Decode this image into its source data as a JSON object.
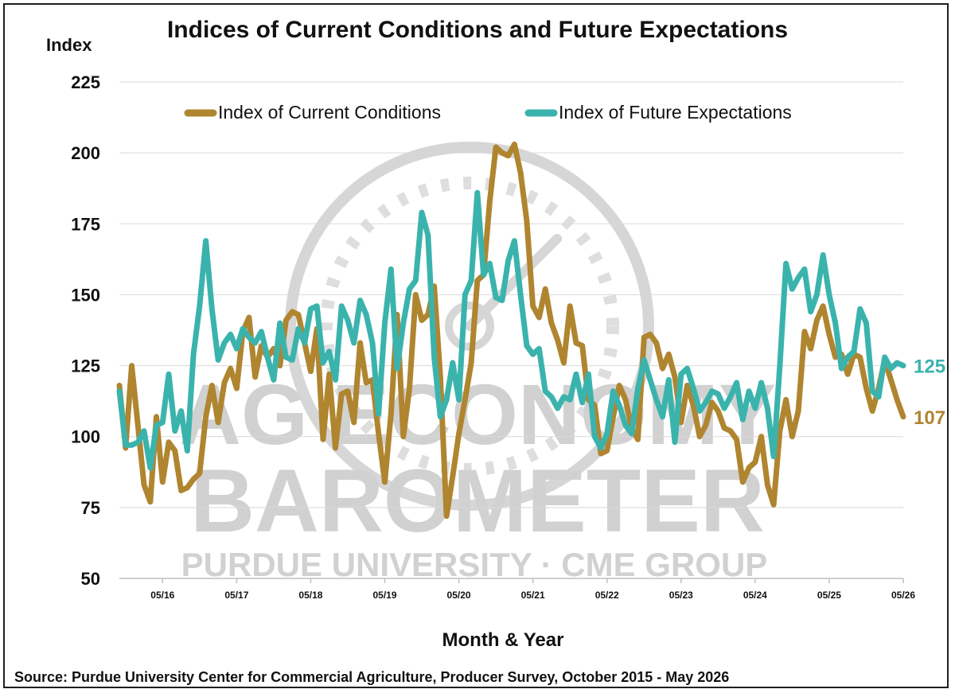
{
  "chart_data": {
    "type": "line",
    "title": "Indices of Current Conditions and Future Expectations",
    "ylabel": "Index",
    "xlabel": "Month & Year",
    "ylim": [
      50,
      225
    ],
    "yticks": [
      225,
      200,
      175,
      150,
      125,
      100,
      75,
      50
    ],
    "x_start": "2015-10",
    "x_end": "2026-05",
    "xticks": [
      {
        "label": "05/16",
        "date": "2016-05"
      },
      {
        "label": "05/17",
        "date": "2017-05"
      },
      {
        "label": "05/18",
        "date": "2018-05"
      },
      {
        "label": "05/19",
        "date": "2019-05"
      },
      {
        "label": "05/20",
        "date": "2020-05"
      },
      {
        "label": "05/21",
        "date": "2021-05"
      },
      {
        "label": "05/22",
        "date": "2022-05"
      },
      {
        "label": "05/23",
        "date": "2023-05"
      },
      {
        "label": "05/24",
        "date": "2024-05"
      },
      {
        "label": "05/25",
        "date": "2025-05"
      },
      {
        "label": "05/26",
        "date": "2026-05"
      }
    ],
    "grid": "horizontal",
    "legend": "top",
    "series": [
      {
        "name": "Index of Current Conditions",
        "color": "#b08530",
        "end_label": "107",
        "points": [
          [
            "2015-10",
            118
          ],
          [
            "2015-11",
            96
          ],
          [
            "2015-12",
            125
          ],
          [
            "2016-01",
            104
          ],
          [
            "2016-02",
            83
          ],
          [
            "2016-03",
            77
          ],
          [
            "2016-04",
            107
          ],
          [
            "2016-05",
            84
          ],
          [
            "2016-06",
            98
          ],
          [
            "2016-07",
            95
          ],
          [
            "2016-08",
            81
          ],
          [
            "2016-09",
            82
          ],
          [
            "2016-10",
            85
          ],
          [
            "2016-11",
            87
          ],
          [
            "2016-12",
            107
          ],
          [
            "2017-01",
            118
          ],
          [
            "2017-02",
            105
          ],
          [
            "2017-03",
            119
          ],
          [
            "2017-04",
            124
          ],
          [
            "2017-05",
            117
          ],
          [
            "2017-06",
            137
          ],
          [
            "2017-07",
            142
          ],
          [
            "2017-08",
            121
          ],
          [
            "2017-09",
            132
          ],
          [
            "2017-10",
            128
          ],
          [
            "2017-11",
            131
          ],
          [
            "2017-12",
            125
          ],
          [
            "2018-01",
            141
          ],
          [
            "2018-02",
            144
          ],
          [
            "2018-03",
            143
          ],
          [
            "2018-04",
            133
          ],
          [
            "2018-05",
            123
          ],
          [
            "2018-06",
            138
          ],
          [
            "2018-07",
            99
          ],
          [
            "2018-08",
            122
          ],
          [
            "2018-09",
            96
          ],
          [
            "2018-10",
            115
          ],
          [
            "2018-11",
            116
          ],
          [
            "2018-12",
            105
          ],
          [
            "2019-01",
            133
          ],
          [
            "2019-02",
            119
          ],
          [
            "2019-03",
            120
          ],
          [
            "2019-04",
            101
          ],
          [
            "2019-05",
            84
          ],
          [
            "2019-06",
            108
          ],
          [
            "2019-07",
            143
          ],
          [
            "2019-08",
            100
          ],
          [
            "2019-09",
            117
          ],
          [
            "2019-10",
            150
          ],
          [
            "2019-11",
            141
          ],
          [
            "2019-12",
            143
          ],
          [
            "2020-01",
            153
          ],
          [
            "2020-02",
            121
          ],
          [
            "2020-03",
            72
          ],
          [
            "2020-04",
            86
          ],
          [
            "2020-05",
            101
          ],
          [
            "2020-06",
            113
          ],
          [
            "2020-07",
            126
          ],
          [
            "2020-08",
            155
          ],
          [
            "2020-09",
            157
          ],
          [
            "2020-10",
            183
          ],
          [
            "2020-11",
            202
          ],
          [
            "2020-12",
            200
          ],
          [
            "2021-01",
            199
          ],
          [
            "2021-02",
            203
          ],
          [
            "2021-03",
            193
          ],
          [
            "2021-04",
            176
          ],
          [
            "2021-05",
            146
          ],
          [
            "2021-06",
            142
          ],
          [
            "2021-07",
            152
          ],
          [
            "2021-08",
            140
          ],
          [
            "2021-09",
            134
          ],
          [
            "2021-10",
            126
          ],
          [
            "2021-11",
            146
          ],
          [
            "2021-12",
            133
          ],
          [
            "2022-01",
            132
          ],
          [
            "2022-02",
            113
          ],
          [
            "2022-03",
            111
          ],
          [
            "2022-04",
            94
          ],
          [
            "2022-05",
            95
          ],
          [
            "2022-06",
            107
          ],
          [
            "2022-07",
            118
          ],
          [
            "2022-08",
            113
          ],
          [
            "2022-09",
            103
          ],
          [
            "2022-10",
            99
          ],
          [
            "2022-11",
            135
          ],
          [
            "2022-12",
            136
          ],
          [
            "2023-01",
            133
          ],
          [
            "2023-02",
            124
          ],
          [
            "2023-03",
            129
          ],
          [
            "2023-04",
            121
          ],
          [
            "2023-05",
            105
          ],
          [
            "2023-06",
            118
          ],
          [
            "2023-07",
            111
          ],
          [
            "2023-08",
            100
          ],
          [
            "2023-09",
            104
          ],
          [
            "2023-10",
            112
          ],
          [
            "2023-11",
            109
          ],
          [
            "2023-12",
            103
          ],
          [
            "2024-01",
            102
          ],
          [
            "2024-02",
            99
          ],
          [
            "2024-03",
            84
          ],
          [
            "2024-04",
            89
          ],
          [
            "2024-05",
            91
          ],
          [
            "2024-06",
            100
          ],
          [
            "2024-07",
            83
          ],
          [
            "2024-08",
            76
          ],
          [
            "2024-09",
            102
          ],
          [
            "2024-10",
            113
          ],
          [
            "2024-11",
            100
          ],
          [
            "2024-12",
            109
          ],
          [
            "2025-01",
            137
          ],
          [
            "2025-02",
            131
          ],
          [
            "2025-03",
            141
          ],
          [
            "2025-04",
            146
          ],
          [
            "2025-05",
            136
          ],
          [
            "2025-06",
            128
          ],
          [
            "2025-07",
            129
          ],
          [
            "2025-08",
            122
          ],
          [
            "2025-09",
            129
          ],
          [
            "2025-10",
            128
          ],
          [
            "2025-11",
            117
          ],
          [
            "2025-12",
            109
          ],
          [
            "2026-01",
            117
          ],
          [
            "2026-02",
            127
          ],
          [
            "2026-03",
            120
          ],
          [
            "2026-04",
            113
          ],
          [
            "2026-05",
            107
          ]
        ]
      },
      {
        "name": "Index of Future Expectations",
        "color": "#3bb3ad",
        "end_label": "125",
        "points": [
          [
            "2015-10",
            116
          ],
          [
            "2015-11",
            97
          ],
          [
            "2015-12",
            97
          ],
          [
            "2016-01",
            98
          ],
          [
            "2016-02",
            102
          ],
          [
            "2016-03",
            89
          ],
          [
            "2016-04",
            104
          ],
          [
            "2016-05",
            105
          ],
          [
            "2016-06",
            122
          ],
          [
            "2016-07",
            102
          ],
          [
            "2016-08",
            109
          ],
          [
            "2016-09",
            95
          ],
          [
            "2016-10",
            129
          ],
          [
            "2016-11",
            146
          ],
          [
            "2016-12",
            169
          ],
          [
            "2017-01",
            145
          ],
          [
            "2017-02",
            127
          ],
          [
            "2017-03",
            133
          ],
          [
            "2017-04",
            136
          ],
          [
            "2017-05",
            131
          ],
          [
            "2017-06",
            138
          ],
          [
            "2017-07",
            135
          ],
          [
            "2017-08",
            133
          ],
          [
            "2017-09",
            137
          ],
          [
            "2017-10",
            128
          ],
          [
            "2017-11",
            120
          ],
          [
            "2017-12",
            140
          ],
          [
            "2018-01",
            128
          ],
          [
            "2018-02",
            127
          ],
          [
            "2018-03",
            138
          ],
          [
            "2018-04",
            133
          ],
          [
            "2018-05",
            145
          ],
          [
            "2018-06",
            146
          ],
          [
            "2018-07",
            126
          ],
          [
            "2018-08",
            130
          ],
          [
            "2018-09",
            120
          ],
          [
            "2018-10",
            146
          ],
          [
            "2018-11",
            141
          ],
          [
            "2018-12",
            133
          ],
          [
            "2019-01",
            148
          ],
          [
            "2019-02",
            143
          ],
          [
            "2019-03",
            133
          ],
          [
            "2019-04",
            108
          ],
          [
            "2019-05",
            140
          ],
          [
            "2019-06",
            159
          ],
          [
            "2019-07",
            124
          ],
          [
            "2019-08",
            140
          ],
          [
            "2019-09",
            152
          ],
          [
            "2019-10",
            155
          ],
          [
            "2019-11",
            179
          ],
          [
            "2019-12",
            171
          ],
          [
            "2020-01",
            128
          ],
          [
            "2020-02",
            107
          ],
          [
            "2020-03",
            113
          ],
          [
            "2020-04",
            126
          ],
          [
            "2020-05",
            113
          ],
          [
            "2020-06",
            150
          ],
          [
            "2020-07",
            155
          ],
          [
            "2020-08",
            186
          ],
          [
            "2020-09",
            157
          ],
          [
            "2020-10",
            161
          ],
          [
            "2020-11",
            149
          ],
          [
            "2020-12",
            148
          ],
          [
            "2021-01",
            162
          ],
          [
            "2021-02",
            169
          ],
          [
            "2021-03",
            150
          ],
          [
            "2021-04",
            132
          ],
          [
            "2021-05",
            129
          ],
          [
            "2021-06",
            131
          ],
          [
            "2021-07",
            116
          ],
          [
            "2021-08",
            114
          ],
          [
            "2021-09",
            110
          ],
          [
            "2021-10",
            114
          ],
          [
            "2021-11",
            113
          ],
          [
            "2021-12",
            122
          ],
          [
            "2022-01",
            112
          ],
          [
            "2022-02",
            122
          ],
          [
            "2022-03",
            100
          ],
          [
            "2022-04",
            96
          ],
          [
            "2022-05",
            101
          ],
          [
            "2022-06",
            116
          ],
          [
            "2022-07",
            111
          ],
          [
            "2022-08",
            104
          ],
          [
            "2022-09",
            101
          ],
          [
            "2022-10",
            117
          ],
          [
            "2022-11",
            127
          ],
          [
            "2022-12",
            120
          ],
          [
            "2023-01",
            113
          ],
          [
            "2023-02",
            107
          ],
          [
            "2023-03",
            120
          ],
          [
            "2023-04",
            98
          ],
          [
            "2023-05",
            122
          ],
          [
            "2023-06",
            124
          ],
          [
            "2023-07",
            117
          ],
          [
            "2023-08",
            109
          ],
          [
            "2023-09",
            112
          ],
          [
            "2023-10",
            116
          ],
          [
            "2023-11",
            115
          ],
          [
            "2023-12",
            110
          ],
          [
            "2024-01",
            114
          ],
          [
            "2024-02",
            119
          ],
          [
            "2024-03",
            106
          ],
          [
            "2024-04",
            116
          ],
          [
            "2024-05",
            110
          ],
          [
            "2024-06",
            119
          ],
          [
            "2024-07",
            110
          ],
          [
            "2024-08",
            93
          ],
          [
            "2024-09",
            125
          ],
          [
            "2024-10",
            161
          ],
          [
            "2024-11",
            152
          ],
          [
            "2024-12",
            156
          ],
          [
            "2025-01",
            159
          ],
          [
            "2025-02",
            144
          ],
          [
            "2025-03",
            150
          ],
          [
            "2025-04",
            164
          ],
          [
            "2025-05",
            150
          ],
          [
            "2025-06",
            140
          ],
          [
            "2025-07",
            124
          ],
          [
            "2025-08",
            128
          ],
          [
            "2025-09",
            130
          ],
          [
            "2025-10",
            145
          ],
          [
            "2025-11",
            140
          ],
          [
            "2025-12",
            116
          ],
          [
            "2026-01",
            114
          ],
          [
            "2026-02",
            128
          ],
          [
            "2026-03",
            124
          ],
          [
            "2026-04",
            126
          ],
          [
            "2026-05",
            125
          ]
        ]
      }
    ]
  },
  "watermark": {
    "line1": "AG ECONOMY",
    "line2": "BAROMETER",
    "line3": "PURDUE UNIVERSITY · CME GROUP",
    "icon": "barometer-gauge-icon"
  },
  "source_note": "Source: Purdue University Center for Commercial Agriculture, Producer Survey, October 2015 - May 2026"
}
